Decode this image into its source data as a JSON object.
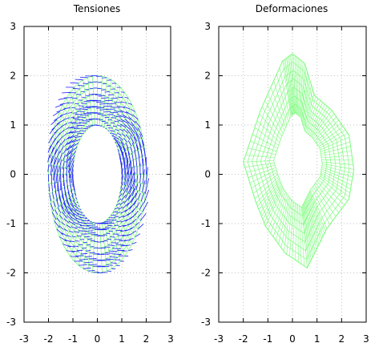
{
  "colors": {
    "mesh": "#7CFC7C",
    "arrows": "#1a1aff",
    "grid": "#bfbfbf",
    "axis": "#000000"
  },
  "chart_data": [
    {
      "type": "vector-field",
      "title": "Tensiones",
      "xlim": [
        -3,
        3
      ],
      "ylim": [
        -3,
        3
      ],
      "xticks": [
        -3,
        -2,
        -1,
        0,
        1,
        2,
        3
      ],
      "yticks": [
        -3,
        -2,
        -1,
        0,
        1,
        2,
        3
      ],
      "tick_labels": [
        "-3",
        "-2",
        "-1",
        "0",
        "1",
        "2",
        "3"
      ],
      "grid": true,
      "mesh": {
        "shape": "ellipse-ring",
        "center": [
          0,
          0
        ],
        "inner_radii": [
          1,
          1
        ],
        "outer_radii": [
          2,
          2
        ],
        "radial_divisions": 8,
        "angular_divisions": 64
      },
      "series": [
        {
          "kind": "mesh",
          "color": "#7CFC7C"
        },
        {
          "kind": "arrows",
          "color": "#1a1aff"
        }
      ]
    },
    {
      "type": "mesh",
      "title": "Deformaciones",
      "xlim": [
        -3,
        3
      ],
      "ylim": [
        -3,
        3
      ],
      "xticks": [
        -3,
        -2,
        -1,
        0,
        1,
        2,
        3
      ],
      "yticks": [
        -3,
        -2,
        -1,
        0,
        1,
        2,
        3
      ],
      "tick_labels": [
        "-3",
        "-2",
        "-1",
        "0",
        "1",
        "2",
        "3"
      ],
      "grid": true,
      "outline_points": [
        [
          -2.0,
          0.25
        ],
        [
          -1.3,
          1.3
        ],
        [
          -0.4,
          2.3
        ],
        [
          0,
          2.45
        ],
        [
          0.5,
          2.25
        ],
        [
          0.9,
          1.6
        ],
        [
          1.6,
          1.3
        ],
        [
          2.3,
          0.8
        ],
        [
          2.5,
          0.1
        ],
        [
          2.3,
          -0.5
        ],
        [
          1.4,
          -1.1
        ],
        [
          1.0,
          -1.5
        ],
        [
          0.6,
          -1.9
        ],
        [
          -0.3,
          -1.6
        ],
        [
          -1.1,
          -1.05
        ],
        [
          -1.5,
          -0.55
        ],
        [
          -2.0,
          0.25
        ]
      ],
      "series": [
        {
          "kind": "mesh",
          "color": "#7CFC7C"
        }
      ]
    }
  ]
}
